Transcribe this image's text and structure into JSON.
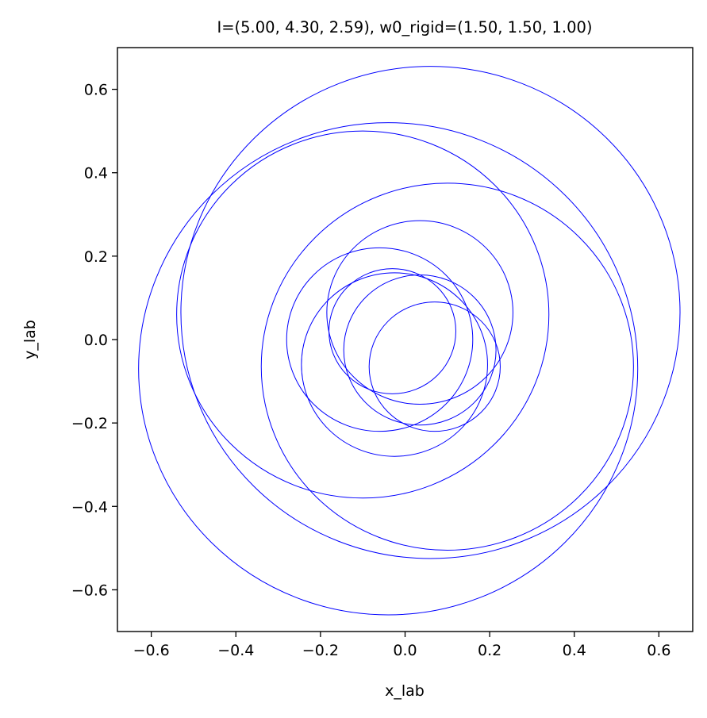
{
  "chart_data": {
    "type": "line",
    "title": "I=(5.00, 4.30, 2.59), w0_rigid=(1.50, 1.50, 1.00)",
    "xlabel": "x_lab",
    "ylabel": "y_lab",
    "xlim": [
      -0.68,
      0.68
    ],
    "ylim": [
      -0.7,
      0.7
    ],
    "xticks": [
      -0.6,
      -0.4,
      -0.2,
      0.0,
      0.2,
      0.4,
      0.6
    ],
    "yticks": [
      -0.6,
      -0.4,
      -0.2,
      0.0,
      0.2,
      0.4,
      0.6
    ],
    "xtick_labels": [
      "−0.6",
      "−0.4",
      "−0.2",
      "0.0",
      "0.2",
      "0.4",
      "0.6"
    ],
    "ytick_labels": [
      "−0.6",
      "−0.4",
      "−0.2",
      "0.0",
      "0.2",
      "0.4",
      "0.6"
    ],
    "grid": false,
    "line_color": "#0000ff",
    "series": [
      {
        "kind": "circle",
        "cx": 0.035,
        "cy": 0.065,
        "r": 0.22
      },
      {
        "kind": "circle",
        "cx": -0.025,
        "cy": -0.06,
        "r": 0.22
      },
      {
        "kind": "circle",
        "cx": 0.06,
        "cy": 0.065,
        "r": 0.59
      },
      {
        "kind": "circle",
        "cx": -0.04,
        "cy": -0.07,
        "r": 0.59
      },
      {
        "kind": "circle",
        "cx": 0.035,
        "cy": -0.025,
        "r": 0.18
      },
      {
        "kind": "circle",
        "cx": 0.07,
        "cy": -0.065,
        "r": 0.155
      },
      {
        "kind": "circle",
        "cx": 0.1,
        "cy": -0.065,
        "r": 0.44
      },
      {
        "kind": "circle",
        "cx": -0.1,
        "cy": 0.06,
        "r": 0.44
      },
      {
        "kind": "circle",
        "cx": -0.03,
        "cy": 0.02,
        "r": 0.15
      },
      {
        "kind": "circle",
        "cx": -0.06,
        "cy": 0.0,
        "r": 0.22
      }
    ]
  }
}
